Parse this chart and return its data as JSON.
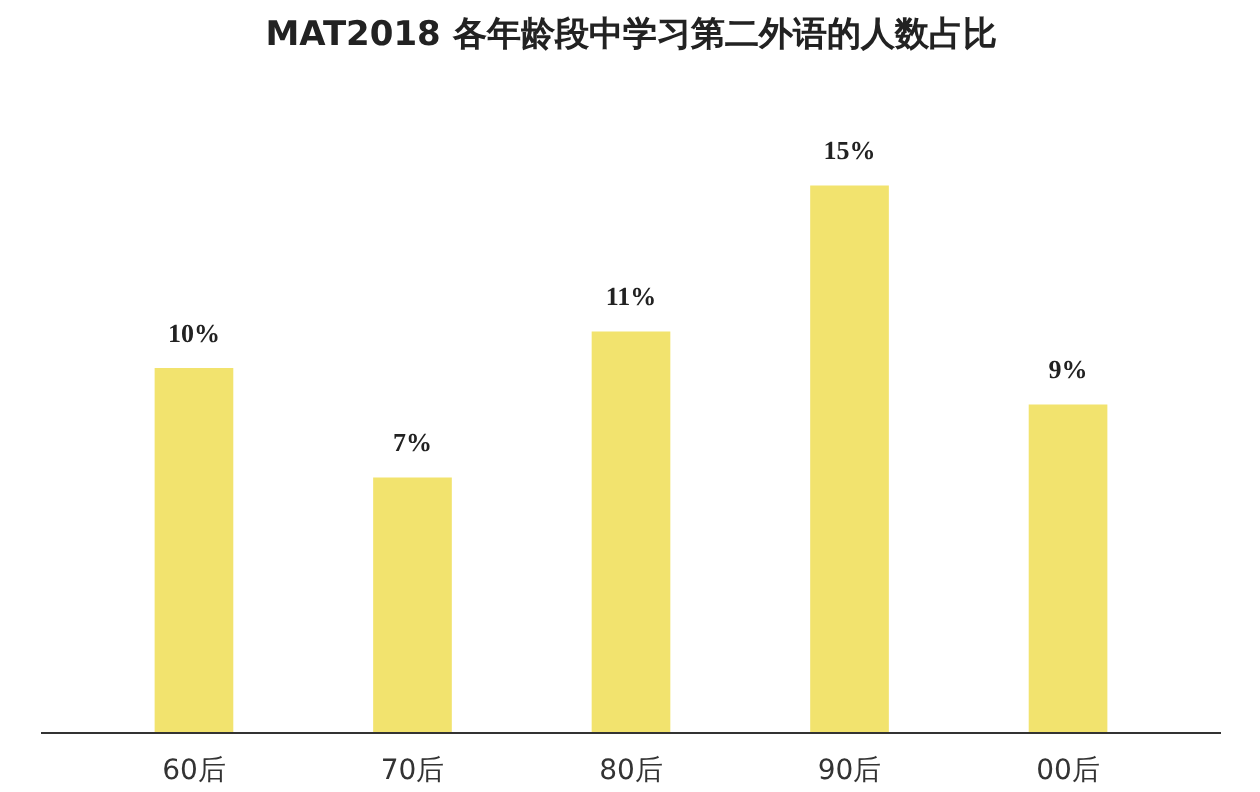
{
  "chart_data": {
    "type": "bar",
    "title": "MAT2018 各年龄段中学习第二外语的人数占比",
    "categories": [
      "60后",
      "70后",
      "80后",
      "90后",
      "00后"
    ],
    "values": [
      10,
      7,
      11,
      15,
      9
    ],
    "value_labels": [
      "10%",
      "7%",
      "11%",
      "15%",
      "9%"
    ],
    "color": "#f2e36e",
    "grid": false
  }
}
